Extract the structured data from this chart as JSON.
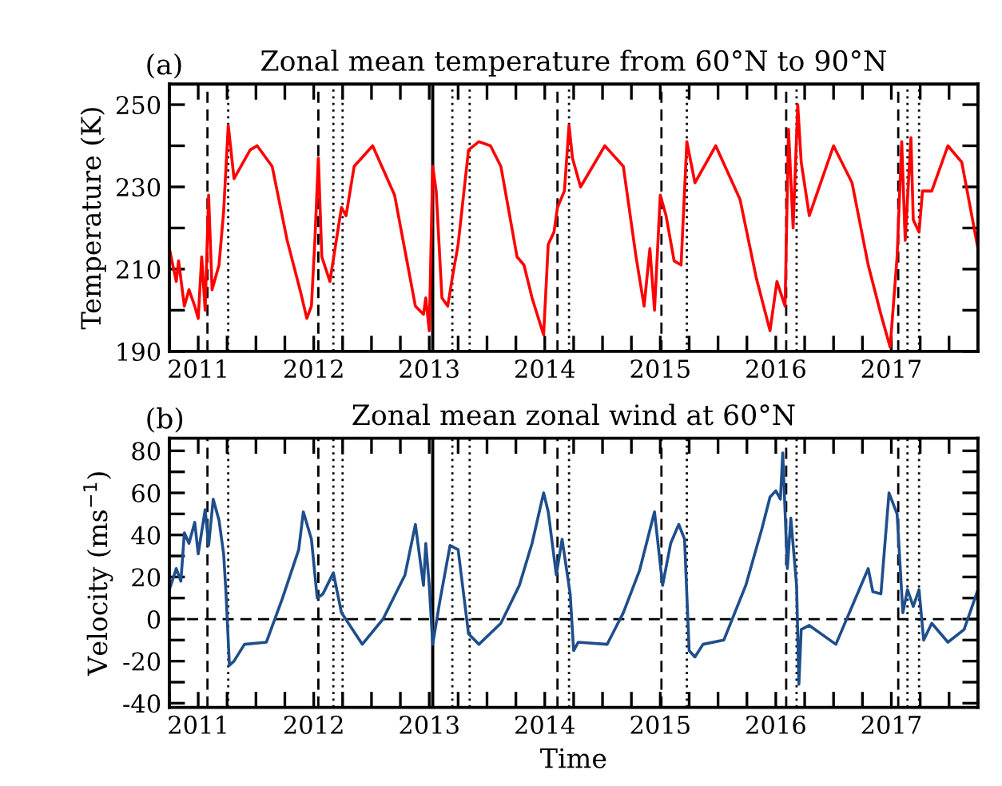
{
  "chart_data": [
    {
      "type": "line",
      "title": "Zonal mean temperature from 60°N to 90°N",
      "ylabel": "Temperature (K)",
      "annotations": [
        "(a)"
      ],
      "x": [
        2010.75,
        2010.81,
        2010.83,
        2010.88,
        2010.92,
        2010.97,
        2011.0,
        2011.03,
        2011.06,
        2011.09,
        2011.12,
        2011.18,
        2011.22,
        2011.26,
        2011.31,
        2011.45,
        2011.51,
        2011.64,
        2011.77,
        2011.89,
        2011.94,
        2011.98,
        2012.01,
        2012.04,
        2012.07,
        2012.14,
        2012.24,
        2012.28,
        2012.35,
        2012.51,
        2012.7,
        2012.88,
        2012.95,
        2012.97,
        2013.0,
        2013.03,
        2013.06,
        2013.11,
        2013.16,
        2013.2,
        2013.25,
        2013.34,
        2013.43,
        2013.53,
        2013.62,
        2013.76,
        2013.82,
        2013.89,
        2013.99,
        2014.03,
        2014.08,
        2014.11,
        2014.17,
        2014.21,
        2014.24,
        2014.31,
        2014.52,
        2014.68,
        2014.79,
        2014.86,
        2014.91,
        2014.95,
        2015.0,
        2015.05,
        2015.12,
        2015.18,
        2015.23,
        2015.3,
        2015.48,
        2015.69,
        2015.83,
        2015.95,
        2016.01,
        2016.08,
        2016.11,
        2016.15,
        2016.19,
        2016.22,
        2016.29,
        2016.5,
        2016.66,
        2016.8,
        2016.91,
        2016.99,
        2017.05,
        2017.09,
        2017.12,
        2017.17,
        2017.19,
        2017.24,
        2017.27,
        2017.35,
        2017.49,
        2017.61,
        2017.75
      ],
      "series": [
        {
          "color": "#ff0000",
          "values": [
            215,
            207,
            212,
            201,
            205,
            201,
            198,
            213,
            200,
            228,
            205,
            211,
            224,
            245,
            232,
            239,
            240,
            235,
            217,
            204,
            198,
            201,
            217,
            237,
            213,
            207,
            225,
            223,
            235,
            240,
            228,
            201,
            199,
            203,
            195,
            235,
            229,
            203,
            201,
            208,
            216,
            239,
            241,
            240,
            235,
            213,
            211,
            203,
            194,
            216,
            219,
            225,
            229,
            245,
            237,
            230,
            240,
            235,
            213,
            201,
            215,
            200,
            228,
            223,
            212,
            211,
            241,
            231,
            240,
            227,
            208,
            195,
            207,
            201,
            244,
            220,
            250,
            236,
            223,
            240,
            231,
            211,
            199,
            191,
            213,
            241,
            217,
            242,
            222,
            219,
            229,
            229,
            240,
            236,
            215
          ]
        }
      ],
      "xlim": [
        2010.75,
        2017.75
      ],
      "xticks": [
        {
          "value": 2010.75,
          "label": null
        },
        2011,
        {
          "value": 2011.25,
          "label": null
        },
        {
          "value": 2011.5,
          "label": null
        },
        {
          "value": 2011.75,
          "label": null
        },
        2012,
        {
          "value": 2012.25,
          "label": null
        },
        {
          "value": 2012.5,
          "label": null
        },
        {
          "value": 2012.75,
          "label": null
        },
        2013,
        {
          "value": 2013.25,
          "label": null
        },
        {
          "value": 2013.5,
          "label": null
        },
        {
          "value": 2013.75,
          "label": null
        },
        2014,
        {
          "value": 2014.25,
          "label": null
        },
        {
          "value": 2014.5,
          "label": null
        },
        {
          "value": 2014.75,
          "label": null
        },
        2015,
        {
          "value": 2015.25,
          "label": null
        },
        {
          "value": 2015.5,
          "label": null
        },
        {
          "value": 2015.75,
          "label": null
        },
        2016,
        {
          "value": 2016.25,
          "label": null
        },
        {
          "value": 2016.5,
          "label": null
        },
        {
          "value": 2016.75,
          "label": null
        },
        2017,
        {
          "value": 2017.25,
          "label": null
        },
        {
          "value": 2017.5,
          "label": null
        }
      ],
      "ylim": [
        190,
        255
      ],
      "yticks": [
        190,
        {
          "value": 200,
          "label": null
        },
        210,
        {
          "value": 220,
          "label": null
        },
        230,
        {
          "value": 240,
          "label": null
        },
        250
      ],
      "grid": false,
      "legend": false,
      "ref_lines": [
        {
          "axis": "x",
          "value": 2011.08,
          "line_style": "dashed"
        },
        {
          "axis": "x",
          "value": 2011.26,
          "line_style": "dotted"
        },
        {
          "axis": "x",
          "value": 2012.04,
          "line_style": "dashed"
        },
        {
          "axis": "x",
          "value": 2012.17,
          "line_style": "dotted"
        },
        {
          "axis": "x",
          "value": 2012.25,
          "line_style": "dotted"
        },
        {
          "axis": "x",
          "value": 2013.03,
          "line_style": "solid"
        },
        {
          "axis": "x",
          "value": 2013.2,
          "line_style": "dotted"
        },
        {
          "axis": "x",
          "value": 2013.35,
          "line_style": "dotted"
        },
        {
          "axis": "x",
          "value": 2014.11,
          "line_style": "dashed"
        },
        {
          "axis": "x",
          "value": 2014.21,
          "line_style": "dotted"
        },
        {
          "axis": "x",
          "value": 2015.01,
          "line_style": "dashed"
        },
        {
          "axis": "x",
          "value": 2015.23,
          "line_style": "dotted"
        },
        {
          "axis": "x",
          "value": 2016.09,
          "line_style": "dashed"
        },
        {
          "axis": "x",
          "value": 2016.18,
          "line_style": "dotted"
        },
        {
          "axis": "x",
          "value": 2017.06,
          "line_style": "dashed"
        },
        {
          "axis": "x",
          "value": 2017.14,
          "line_style": "dotted"
        },
        {
          "axis": "x",
          "value": 2017.24,
          "line_style": "dotted"
        }
      ]
    },
    {
      "type": "line",
      "title": "Zonal mean zonal wind at 60°N",
      "xlabel": "Time",
      "ylabel": "Velocity (ms$^{−1}$)",
      "annotations": [
        "(b)"
      ],
      "x": [
        2010.75,
        2010.81,
        2010.85,
        2010.88,
        2010.92,
        2010.97,
        2011.0,
        2011.06,
        2011.09,
        2011.13,
        2011.18,
        2011.22,
        2011.24,
        2011.27,
        2011.31,
        2011.4,
        2011.59,
        2011.73,
        2011.87,
        2011.91,
        2011.98,
        2012.03,
        2012.08,
        2012.17,
        2012.24,
        2012.42,
        2012.6,
        2012.79,
        2012.88,
        2012.95,
        2012.97,
        2013.0,
        2013.03,
        2013.09,
        2013.18,
        2013.25,
        2013.34,
        2013.43,
        2013.62,
        2013.78,
        2013.89,
        2013.99,
        2014.03,
        2014.1,
        2014.15,
        2014.22,
        2014.25,
        2014.29,
        2014.54,
        2014.68,
        2014.82,
        2014.95,
        2015.02,
        2015.09,
        2015.16,
        2015.21,
        2015.25,
        2015.3,
        2015.37,
        2015.55,
        2015.74,
        2015.88,
        2015.95,
        2016.0,
        2016.04,
        2016.06,
        2016.1,
        2016.13,
        2016.18,
        2016.2,
        2016.22,
        2016.29,
        2016.52,
        2016.8,
        2016.84,
        2016.91,
        2016.98,
        2017.05,
        2017.1,
        2017.14,
        2017.19,
        2017.24,
        2017.28,
        2017.35,
        2017.49,
        2017.63,
        2017.75
      ],
      "series": [
        {
          "color": "#1f4e8c",
          "values": [
            14,
            24,
            18,
            41,
            36,
            46,
            31,
            52,
            35,
            57,
            47,
            31,
            13,
            -22,
            -20,
            -12,
            -11,
            10,
            33,
            51,
            38,
            10,
            12,
            22,
            3,
            -12,
            0,
            21,
            45,
            16,
            36,
            16,
            -12,
            8,
            35,
            33,
            -7,
            -12,
            -2,
            16,
            36,
            60,
            51,
            21,
            38,
            12,
            -15,
            -11,
            -12,
            3,
            23,
            51,
            16,
            36,
            45,
            38,
            -15,
            -18,
            -12,
            -10,
            16,
            43,
            58,
            61,
            57,
            79,
            24,
            48,
            16,
            -31,
            -5,
            -3,
            -12,
            24,
            13,
            12,
            60,
            50,
            3,
            14,
            6,
            14,
            -10,
            -2,
            -11,
            -5,
            14
          ]
        }
      ],
      "xlim": [
        2010.75,
        2017.75
      ],
      "xticks": [
        {
          "value": 2010.75,
          "label": null
        },
        2011,
        {
          "value": 2011.25,
          "label": null
        },
        {
          "value": 2011.5,
          "label": null
        },
        {
          "value": 2011.75,
          "label": null
        },
        2012,
        {
          "value": 2012.25,
          "label": null
        },
        {
          "value": 2012.5,
          "label": null
        },
        {
          "value": 2012.75,
          "label": null
        },
        2013,
        {
          "value": 2013.25,
          "label": null
        },
        {
          "value": 2013.5,
          "label": null
        },
        {
          "value": 2013.75,
          "label": null
        },
        2014,
        {
          "value": 2014.25,
          "label": null
        },
        {
          "value": 2014.5,
          "label": null
        },
        {
          "value": 2014.75,
          "label": null
        },
        2015,
        {
          "value": 2015.25,
          "label": null
        },
        {
          "value": 2015.5,
          "label": null
        },
        {
          "value": 2015.75,
          "label": null
        },
        2016,
        {
          "value": 2016.25,
          "label": null
        },
        {
          "value": 2016.5,
          "label": null
        },
        {
          "value": 2016.75,
          "label": null
        },
        2017,
        {
          "value": 2017.25,
          "label": null
        },
        {
          "value": 2017.5,
          "label": null
        }
      ],
      "ylim": [
        -42,
        86
      ],
      "yticks": [
        -40,
        {
          "value": -30,
          "label": null
        },
        -20,
        {
          "value": -10,
          "label": null
        },
        0,
        {
          "value": 10,
          "label": null
        },
        20,
        {
          "value": 30,
          "label": null
        },
        40,
        {
          "value": 50,
          "label": null
        },
        60,
        {
          "value": 70,
          "label": null
        },
        80
      ],
      "grid": false,
      "legend": false,
      "ref_lines": [
        {
          "axis": "y",
          "value": 0,
          "line_style": "dashed"
        },
        {
          "axis": "x",
          "value": 2011.08,
          "line_style": "dashed"
        },
        {
          "axis": "x",
          "value": 2011.26,
          "line_style": "dotted"
        },
        {
          "axis": "x",
          "value": 2012.04,
          "line_style": "dashed"
        },
        {
          "axis": "x",
          "value": 2012.17,
          "line_style": "dotted"
        },
        {
          "axis": "x",
          "value": 2012.25,
          "line_style": "dotted"
        },
        {
          "axis": "x",
          "value": 2013.03,
          "line_style": "solid"
        },
        {
          "axis": "x",
          "value": 2013.2,
          "line_style": "dotted"
        },
        {
          "axis": "x",
          "value": 2013.35,
          "line_style": "dotted"
        },
        {
          "axis": "x",
          "value": 2014.11,
          "line_style": "dashed"
        },
        {
          "axis": "x",
          "value": 2014.21,
          "line_style": "dotted"
        },
        {
          "axis": "x",
          "value": 2015.01,
          "line_style": "dashed"
        },
        {
          "axis": "x",
          "value": 2015.23,
          "line_style": "dotted"
        },
        {
          "axis": "x",
          "value": 2016.09,
          "line_style": "dashed"
        },
        {
          "axis": "x",
          "value": 2016.18,
          "line_style": "dotted"
        },
        {
          "axis": "x",
          "value": 2017.06,
          "line_style": "dashed"
        },
        {
          "axis": "x",
          "value": 2017.14,
          "line_style": "dotted"
        },
        {
          "axis": "x",
          "value": 2017.24,
          "line_style": "dotted"
        }
      ]
    }
  ]
}
